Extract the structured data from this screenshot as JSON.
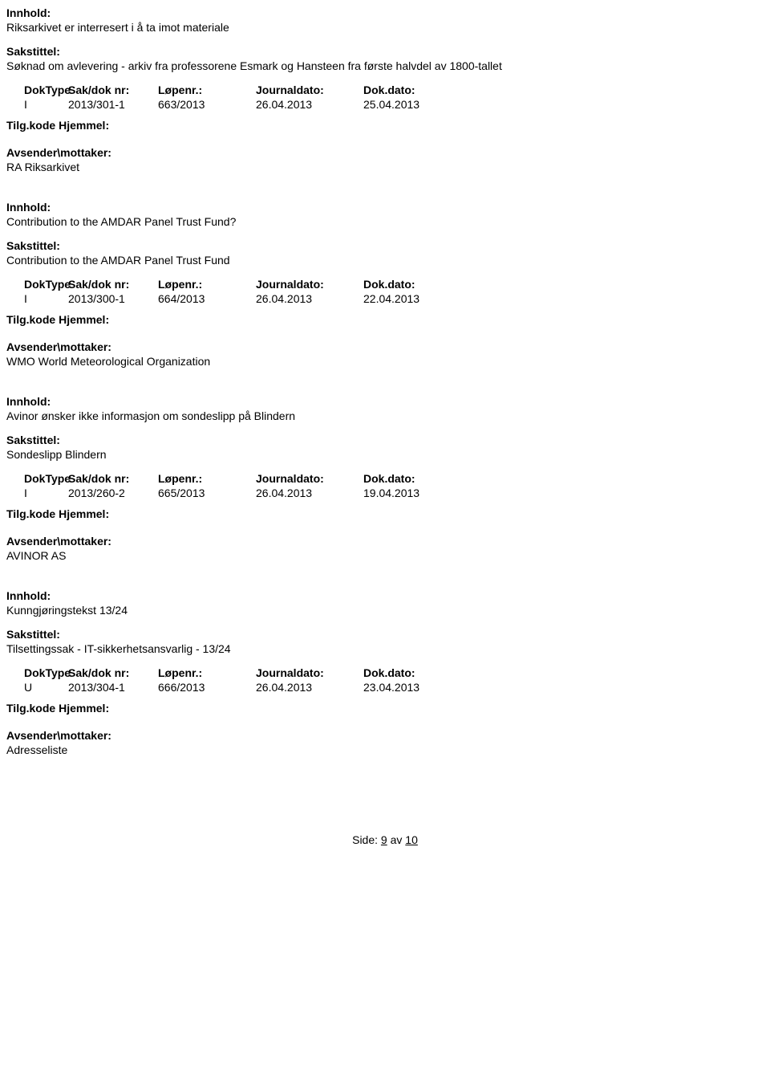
{
  "labels": {
    "innhold": "Innhold:",
    "sakstittel": "Sakstittel:",
    "doktype": "DokType",
    "sakdoknr": "Sak/dok nr:",
    "lopenr": "Løpenr.:",
    "journaldato": "Journaldato:",
    "dokdato": "Dok.dato:",
    "tilgkode": "Tilg.kode Hjemmel:",
    "avsender": "Avsender\\mottaker:"
  },
  "entries": [
    {
      "innhold": "Riksarkivet er interresert i å ta imot materiale",
      "sakstittel": "Søknad om avlevering - arkiv fra professorene Esmark og Hansteen fra første halvdel av 1800-tallet",
      "doktype": "I",
      "sakdoknr": "2013/301-1",
      "lopenr": "663/2013",
      "journaldato": "26.04.2013",
      "dokdato": "25.04.2013",
      "avsender": "RA Riksarkivet"
    },
    {
      "innhold": "Contribution to the AMDAR Panel Trust Fund?",
      "sakstittel": "Contribution to the AMDAR Panel Trust Fund",
      "doktype": "I",
      "sakdoknr": "2013/300-1",
      "lopenr": "664/2013",
      "journaldato": "26.04.2013",
      "dokdato": "22.04.2013",
      "avsender": "WMO World Meteorological Organization"
    },
    {
      "innhold": "Avinor ønsker ikke informasjon om sondeslipp på Blindern",
      "sakstittel": "Sondeslipp Blindern",
      "doktype": "I",
      "sakdoknr": "2013/260-2",
      "lopenr": "665/2013",
      "journaldato": "26.04.2013",
      "dokdato": "19.04.2013",
      "avsender": "AVINOR AS"
    },
    {
      "innhold": "Kunngjøringstekst 13/24",
      "sakstittel": "Tilsettingssak - IT-sikkerhetsansvarlig - 13/24",
      "doktype": "U",
      "sakdoknr": "2013/304-1",
      "lopenr": "666/2013",
      "journaldato": "26.04.2013",
      "dokdato": "23.04.2013",
      "avsender": "Adresseliste"
    }
  ],
  "footer": {
    "prefix": "Side:",
    "current": "9",
    "separator": "av",
    "total": "10"
  }
}
